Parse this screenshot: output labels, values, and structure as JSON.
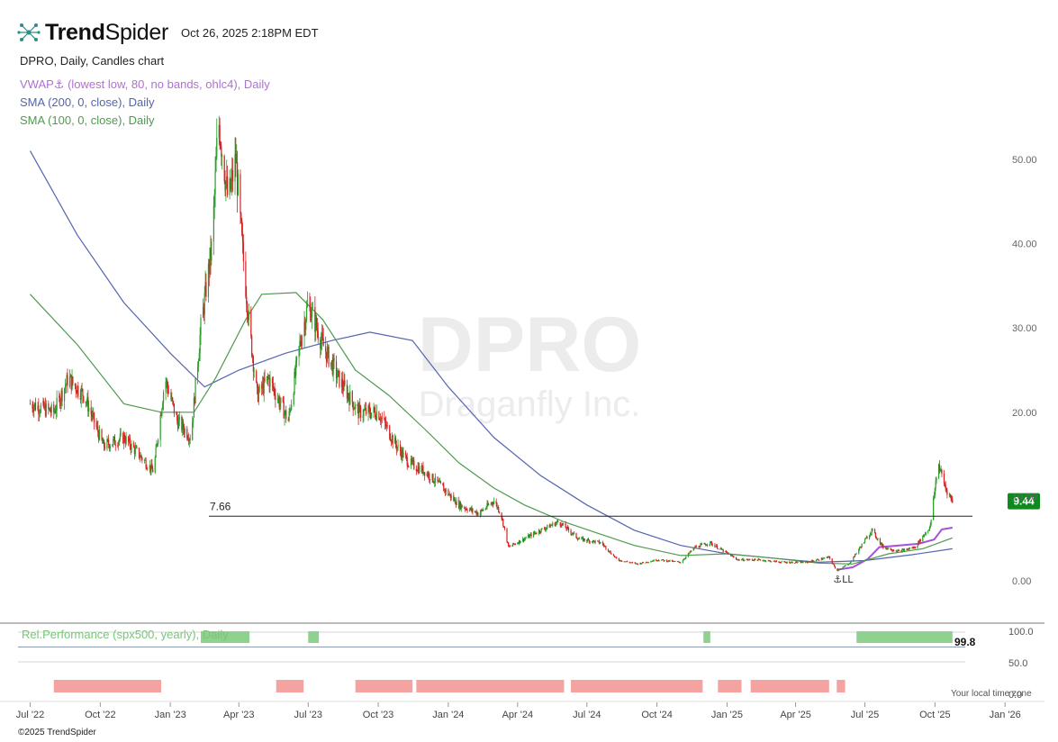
{
  "header": {
    "brand_bold": "Trend",
    "brand_light": "Spider",
    "timestamp": "Oct 26, 2025 2:18PM EDT"
  },
  "chart_title": "DPRO, Daily, Candles chart",
  "legend": {
    "vwap": "VWAP⚓ (lowest low, 80, no bands, ohlc4), Daily",
    "sma200": "SMA (200, 0, close), Daily",
    "sma100": "SMA (100, 0, close), Daily"
  },
  "watermark": {
    "symbol": "DPRO",
    "company": "Draganfly Inc."
  },
  "footer": {
    "copyright": "©2025 TrendSpider",
    "local_time_note": "Your local time zone"
  },
  "colors": {
    "up": "#2a9d2a",
    "down": "#d42020",
    "vwap": "#a64fdc",
    "sma200": "#5564b0",
    "sma100": "#4f9a4f",
    "price_badge": "#0e8a1e",
    "rel_pos": "#8fd18f",
    "rel_neg": "#f4a3a0"
  },
  "chart_data": {
    "type": "candlestick",
    "title": "DPRO, Daily, Candles chart",
    "x_ticks": [
      "Jul '22",
      "Oct '22",
      "Jan '23",
      "Apr '23",
      "Jul '23",
      "Oct '23",
      "Jan '24",
      "Apr '24",
      "Jul '24",
      "Oct '24",
      "Jan '25",
      "Apr '25",
      "Jul '25",
      "Oct '25",
      "Jan '26"
    ],
    "y_ticks": [
      0,
      10,
      20,
      30,
      40,
      50
    ],
    "y_tick_labels": [
      "0.00",
      "10.00",
      "20.00",
      "30.00",
      "40.00",
      "50.00"
    ],
    "ylim": [
      -1,
      57
    ],
    "xlim_days": [
      0,
      1300
    ],
    "horizontal_line": {
      "value": 7.66,
      "label": "7.66"
    },
    "last_price": {
      "value": 9.44,
      "label": "9.44"
    },
    "anchor_marker": {
      "label": "⚓LL",
      "date": "2025-05-25"
    },
    "price_path": [
      [
        "2022-07-01",
        21
      ],
      [
        "2022-08-01",
        20
      ],
      [
        "2022-08-20",
        24
      ],
      [
        "2022-09-10",
        22
      ],
      [
        "2022-10-05",
        16
      ],
      [
        "2022-11-01",
        17
      ],
      [
        "2022-12-10",
        13
      ],
      [
        "2022-12-25",
        24
      ],
      [
        "2023-01-10",
        19
      ],
      [
        "2023-01-28",
        17
      ],
      [
        "2023-02-10",
        30
      ],
      [
        "2023-02-25",
        40
      ],
      [
        "2023-03-05",
        55
      ],
      [
        "2023-03-18",
        45
      ],
      [
        "2023-03-28",
        50
      ],
      [
        "2023-04-05",
        40
      ],
      [
        "2023-04-15",
        30
      ],
      [
        "2023-04-25",
        22
      ],
      [
        "2023-05-10",
        24
      ],
      [
        "2023-06-05",
        19
      ],
      [
        "2023-06-20",
        28
      ],
      [
        "2023-07-01",
        33
      ],
      [
        "2023-07-20",
        28
      ],
      [
        "2023-08-10",
        24
      ],
      [
        "2023-09-05",
        20
      ],
      [
        "2023-10-01",
        20
      ],
      [
        "2023-10-25",
        16
      ],
      [
        "2023-11-10",
        14
      ],
      [
        "2023-12-01",
        13
      ],
      [
        "2023-12-25",
        11
      ],
      [
        "2024-01-15",
        9
      ],
      [
        "2024-02-10",
        8
      ],
      [
        "2024-03-01",
        9.5
      ],
      [
        "2024-03-10",
        8
      ],
      [
        "2024-03-20",
        4
      ],
      [
        "2024-04-10",
        5
      ],
      [
        "2024-05-01",
        6
      ],
      [
        "2024-05-25",
        7
      ],
      [
        "2024-06-20",
        5
      ],
      [
        "2024-07-20",
        4.5
      ],
      [
        "2024-08-10",
        2.5
      ],
      [
        "2024-09-05",
        2
      ],
      [
        "2024-10-01",
        2.5
      ],
      [
        "2024-11-01",
        2.2
      ],
      [
        "2024-11-20",
        4
      ],
      [
        "2024-12-10",
        4.5
      ],
      [
        "2025-01-15",
        2.5
      ],
      [
        "2025-02-10",
        2.5
      ],
      [
        "2025-03-15",
        2.2
      ],
      [
        "2025-04-15",
        2.2
      ],
      [
        "2025-05-15",
        2.8
      ],
      [
        "2025-05-25",
        1.2
      ],
      [
        "2025-06-10",
        2
      ],
      [
        "2025-06-25",
        4
      ],
      [
        "2025-07-10",
        6
      ],
      [
        "2025-07-25",
        4
      ],
      [
        "2025-08-15",
        3.5
      ],
      [
        "2025-09-05",
        4
      ],
      [
        "2025-09-25",
        6.5
      ],
      [
        "2025-10-05",
        14
      ],
      [
        "2025-10-15",
        11
      ],
      [
        "2025-10-24",
        9.44
      ]
    ],
    "series": [
      {
        "name": "VWAP⚓ (lowest low, 80, no bands, ohlc4), Daily",
        "points": [
          [
            "2025-05-25",
            1.3
          ],
          [
            "2025-06-15",
            1.6
          ],
          [
            "2025-07-05",
            2.6
          ],
          [
            "2025-07-20",
            4
          ],
          [
            "2025-08-15",
            4.2
          ],
          [
            "2025-09-10",
            4.4
          ],
          [
            "2025-09-30",
            4.9
          ],
          [
            "2025-10-10",
            6.1
          ],
          [
            "2025-10-24",
            6.3
          ]
        ]
      },
      {
        "name": "SMA (200, 0, close), Daily",
        "points": [
          [
            "2022-07-01",
            51
          ],
          [
            "2022-09-01",
            41
          ],
          [
            "2022-11-01",
            33
          ],
          [
            "2023-01-01",
            27
          ],
          [
            "2023-02-15",
            23
          ],
          [
            "2023-04-01",
            25
          ],
          [
            "2023-06-01",
            27
          ],
          [
            "2023-08-01",
            28.5
          ],
          [
            "2023-09-20",
            29.5
          ],
          [
            "2023-11-15",
            28.5
          ],
          [
            "2024-01-01",
            23
          ],
          [
            "2024-03-01",
            17
          ],
          [
            "2024-05-01",
            12.5
          ],
          [
            "2024-07-01",
            9
          ],
          [
            "2024-09-01",
            6
          ],
          [
            "2024-11-01",
            4.2
          ],
          [
            "2025-01-01",
            3.2
          ],
          [
            "2025-03-01",
            2.7
          ],
          [
            "2025-05-01",
            2.2
          ],
          [
            "2025-07-01",
            2.4
          ],
          [
            "2025-09-01",
            3.1
          ],
          [
            "2025-10-24",
            3.8
          ]
        ]
      },
      {
        "name": "SMA (100, 0, close), Daily",
        "points": [
          [
            "2022-07-01",
            34
          ],
          [
            "2022-09-01",
            28
          ],
          [
            "2022-11-01",
            21
          ],
          [
            "2022-12-20",
            20
          ],
          [
            "2023-02-01",
            20
          ],
          [
            "2023-03-01",
            24
          ],
          [
            "2023-04-10",
            31
          ],
          [
            "2023-05-01",
            34
          ],
          [
            "2023-06-15",
            34.2
          ],
          [
            "2023-07-20",
            31
          ],
          [
            "2023-09-01",
            25
          ],
          [
            "2023-10-15",
            22
          ],
          [
            "2023-12-01",
            18
          ],
          [
            "2024-01-15",
            14
          ],
          [
            "2024-03-01",
            11
          ],
          [
            "2024-04-10",
            9
          ],
          [
            "2024-06-01",
            7
          ],
          [
            "2024-07-10",
            5.8
          ],
          [
            "2024-09-01",
            4.2
          ],
          [
            "2024-11-01",
            3
          ],
          [
            "2025-01-01",
            3.2
          ],
          [
            "2025-03-01",
            2.7
          ],
          [
            "2025-05-01",
            2.1
          ],
          [
            "2025-06-15",
            2
          ],
          [
            "2025-08-01",
            3.2
          ],
          [
            "2025-09-15",
            3.8
          ],
          [
            "2025-10-24",
            5.1
          ]
        ]
      }
    ],
    "rel_performance": {
      "label": "Rel.Performance (spx500, yearly), Daily",
      "last_value": "99.8",
      "y_tick_labels": [
        "100.0",
        "50.0",
        "0.0"
      ],
      "y_ticks": [
        100,
        50,
        0
      ],
      "periods": [
        [
          "2023-02-10",
          "2023-04-15",
          100
        ],
        [
          "2023-07-01",
          "2023-07-15",
          100
        ],
        [
          "2024-12-01",
          "2024-12-10",
          100
        ],
        [
          "2025-06-20",
          "2025-10-24",
          100
        ],
        [
          "2022-08-01",
          "2022-12-20",
          -100
        ],
        [
          "2023-05-20",
          "2023-06-25",
          -100
        ],
        [
          "2023-09-01",
          "2023-11-15",
          -100
        ],
        [
          "2023-11-20",
          "2024-06-01",
          -100
        ],
        [
          "2024-06-10",
          "2024-11-30",
          -100
        ],
        [
          "2024-12-20",
          "2025-01-20",
          -100
        ],
        [
          "2025-02-01",
          "2025-05-15",
          -100
        ],
        [
          "2025-05-25",
          "2025-06-05",
          -100
        ]
      ]
    }
  }
}
